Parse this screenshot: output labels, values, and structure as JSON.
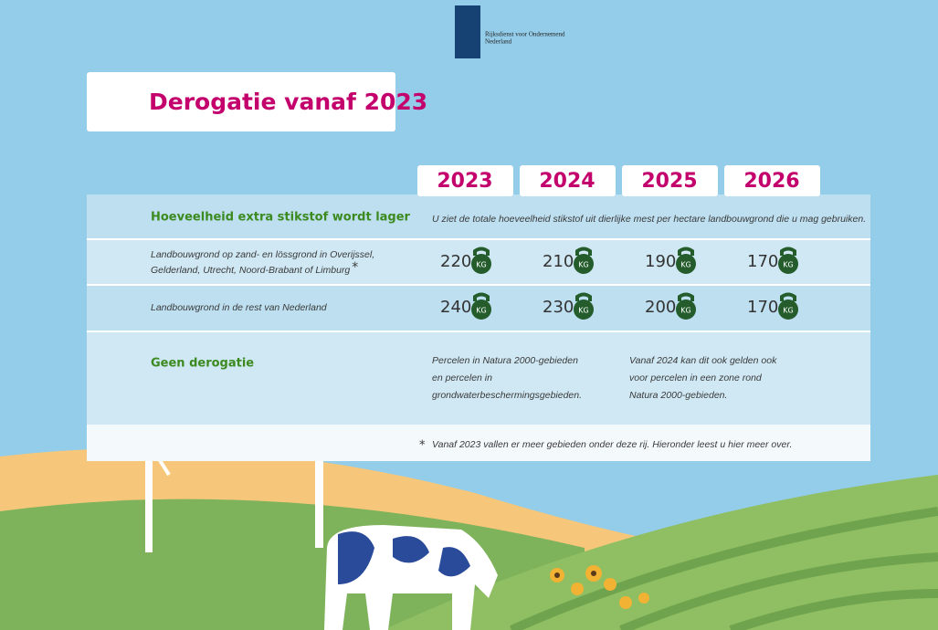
{
  "logo": {
    "line1": "Rijksdienst voor Ondernemend",
    "line2": "Nederland"
  },
  "title": "Derogatie vanaf 2023",
  "table": {
    "years": [
      "2023",
      "2024",
      "2025",
      "2026"
    ],
    "header": {
      "label": "Hoeveelheid extra stikstof wordt lager",
      "note": "U ziet de totale hoeveelheid stikstof uit dierlijke mest  per hectare landbouwgrond die u mag gebruiken."
    },
    "unit": "KG",
    "rows": [
      {
        "label_lines": [
          "Landbouwgrond op zand- en lössgrond in Overijssel,",
          "Gelderland, Utrecht, Noord-Brabant of Limburg"
        ],
        "marker": "*",
        "values": [
          220,
          210,
          190,
          170
        ]
      },
      {
        "label_lines": [
          "Landbouwgrond in de rest van Nederland"
        ],
        "values": [
          240,
          230,
          200,
          170
        ]
      }
    ],
    "no_derogation": {
      "label": "Geen  derogatie",
      "col1": [
        "Percelen in Natura 2000-gebieden",
        "en percelen in",
        "grondwaterbeschermingsgebieden."
      ],
      "col2": [
        "Vanaf 2024 kan dit ook gelden ook",
        "voor percelen in een zone rond",
        "Natura 2000-gebieden."
      ]
    },
    "footnote": {
      "marker": "*",
      "text": "Vanaf 2023 vallen er meer gebieden onder deze rij. Hieronder leest u hier meer over."
    }
  }
}
